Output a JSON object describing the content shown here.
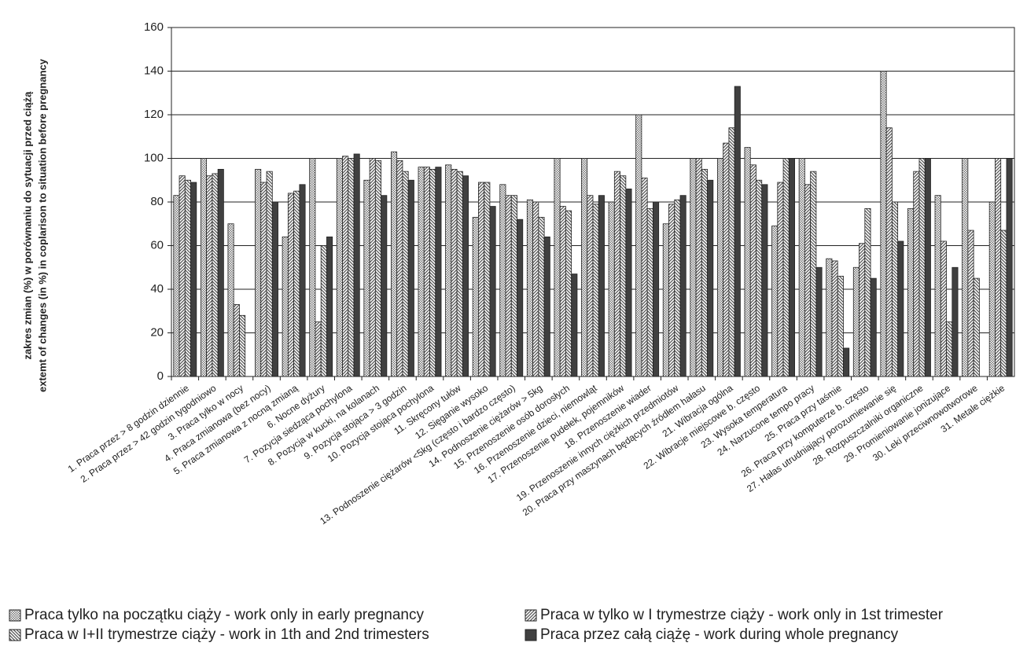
{
  "chart_data": {
    "type": "bar",
    "ylabel": [
      "zakres zmian (%) w porównaniu do sytuacji przed ciążą",
      "extemt of changes (in %) in coplarison to situation before pregnancy"
    ],
    "categories": [
      "1. Praca przez > 8 godzin dziennie",
      "2. Praca przez > 42 godzin tygodniowo",
      "3. Praca tylko w nocy",
      "4. Praca zmianowa (bez nocy)",
      "5. Praca zmianowa z nocną zmianą",
      "6. Nocne dyżury",
      "7. Pozycja siedząca pochylona",
      "8. Pozycja w kucki, na kolanach",
      "9. Pozycja stojąca > 3 godzin",
      "10. Pozycja stojąca pochylona",
      "11. Skręcony tułów",
      "12. Sięganie wysoko",
      "13. Podnoszenie ciężarów <5kg  (często i bardzo często)",
      "14. Podnoszenie ciężarów > 5kg",
      "15. Przenoszenie osób dorosłych",
      "16. Przenoszenie dzieci, niemowląt",
      "17. Przenoszenie pudełek, pojemników",
      "18. Przenoszenie wiader",
      "19. Przenoszenie innych ciężkich przedmiotów",
      "20. Praca przy maszynach będących źródłem hałasu",
      "21. Wibracja ogólna",
      "22. Wibracje miejscowe b. często",
      "23. Wysoka temperatura",
      "24. Narzucone tempo pracy",
      "25. Praca przy taśmie",
      "26. Praca przy komputerze b. często",
      "27. Hałas utrudniający porozumiewanie się",
      "28. Rozpuszczalniki organiczne",
      "29. Promieniowanie jonizujące",
      "30. Leki przeciwnowotworowe",
      "31. Metale ciężkie"
    ],
    "series": [
      {
        "name": "Praca tylko na początku ciąży - work only in early pregnancy",
        "color": "#777777",
        "pattern": "dots",
        "values": [
          83,
          100,
          70,
          95,
          64,
          100,
          100,
          90,
          103,
          96,
          97,
          73,
          88,
          81,
          100,
          100,
          80,
          120,
          70,
          100,
          100,
          105,
          69,
          100,
          54,
          50,
          140,
          77,
          83,
          100,
          80
        ]
      },
      {
        "name": "Praca w tylko w I trymestrze ciąży - work only in 1st trimester",
        "color": "#555555",
        "pattern": "hatch",
        "values": [
          92,
          92,
          33,
          89,
          84,
          25,
          101,
          100,
          99,
          96,
          95,
          89,
          83,
          80,
          78,
          83,
          94,
          91,
          79,
          100,
          107,
          97,
          89,
          88,
          53,
          61,
          114,
          94,
          62,
          67,
          100
        ]
      },
      {
        "name": "Praca w I+II trymestrze ciąży - work in 1th and 2nd trimesters",
        "color": "#555555",
        "pattern": "backhatch",
        "values": [
          90,
          93,
          28,
          94,
          85,
          60,
          100,
          99,
          94,
          95,
          94,
          89,
          83,
          73,
          76,
          79,
          92,
          77,
          81,
          95,
          114,
          90,
          100,
          94,
          46,
          77,
          80,
          100,
          25,
          45,
          67
        ]
      },
      {
        "name": "Praca przez całą ciążę - work during whole pregnancy",
        "color": "#404040",
        "pattern": "solid",
        "values": [
          89,
          95,
          null,
          80,
          88,
          64,
          102,
          83,
          90,
          96,
          92,
          78,
          72,
          64,
          47,
          83,
          86,
          80,
          83,
          90,
          133,
          88,
          100,
          50,
          13,
          45,
          62,
          100,
          50,
          null,
          100
        ]
      }
    ],
    "ylim": [
      0,
      160
    ],
    "yticks": [
      0,
      20,
      40,
      60,
      80,
      100,
      120,
      140,
      160
    ],
    "grid": true,
    "legend": "bottom"
  }
}
